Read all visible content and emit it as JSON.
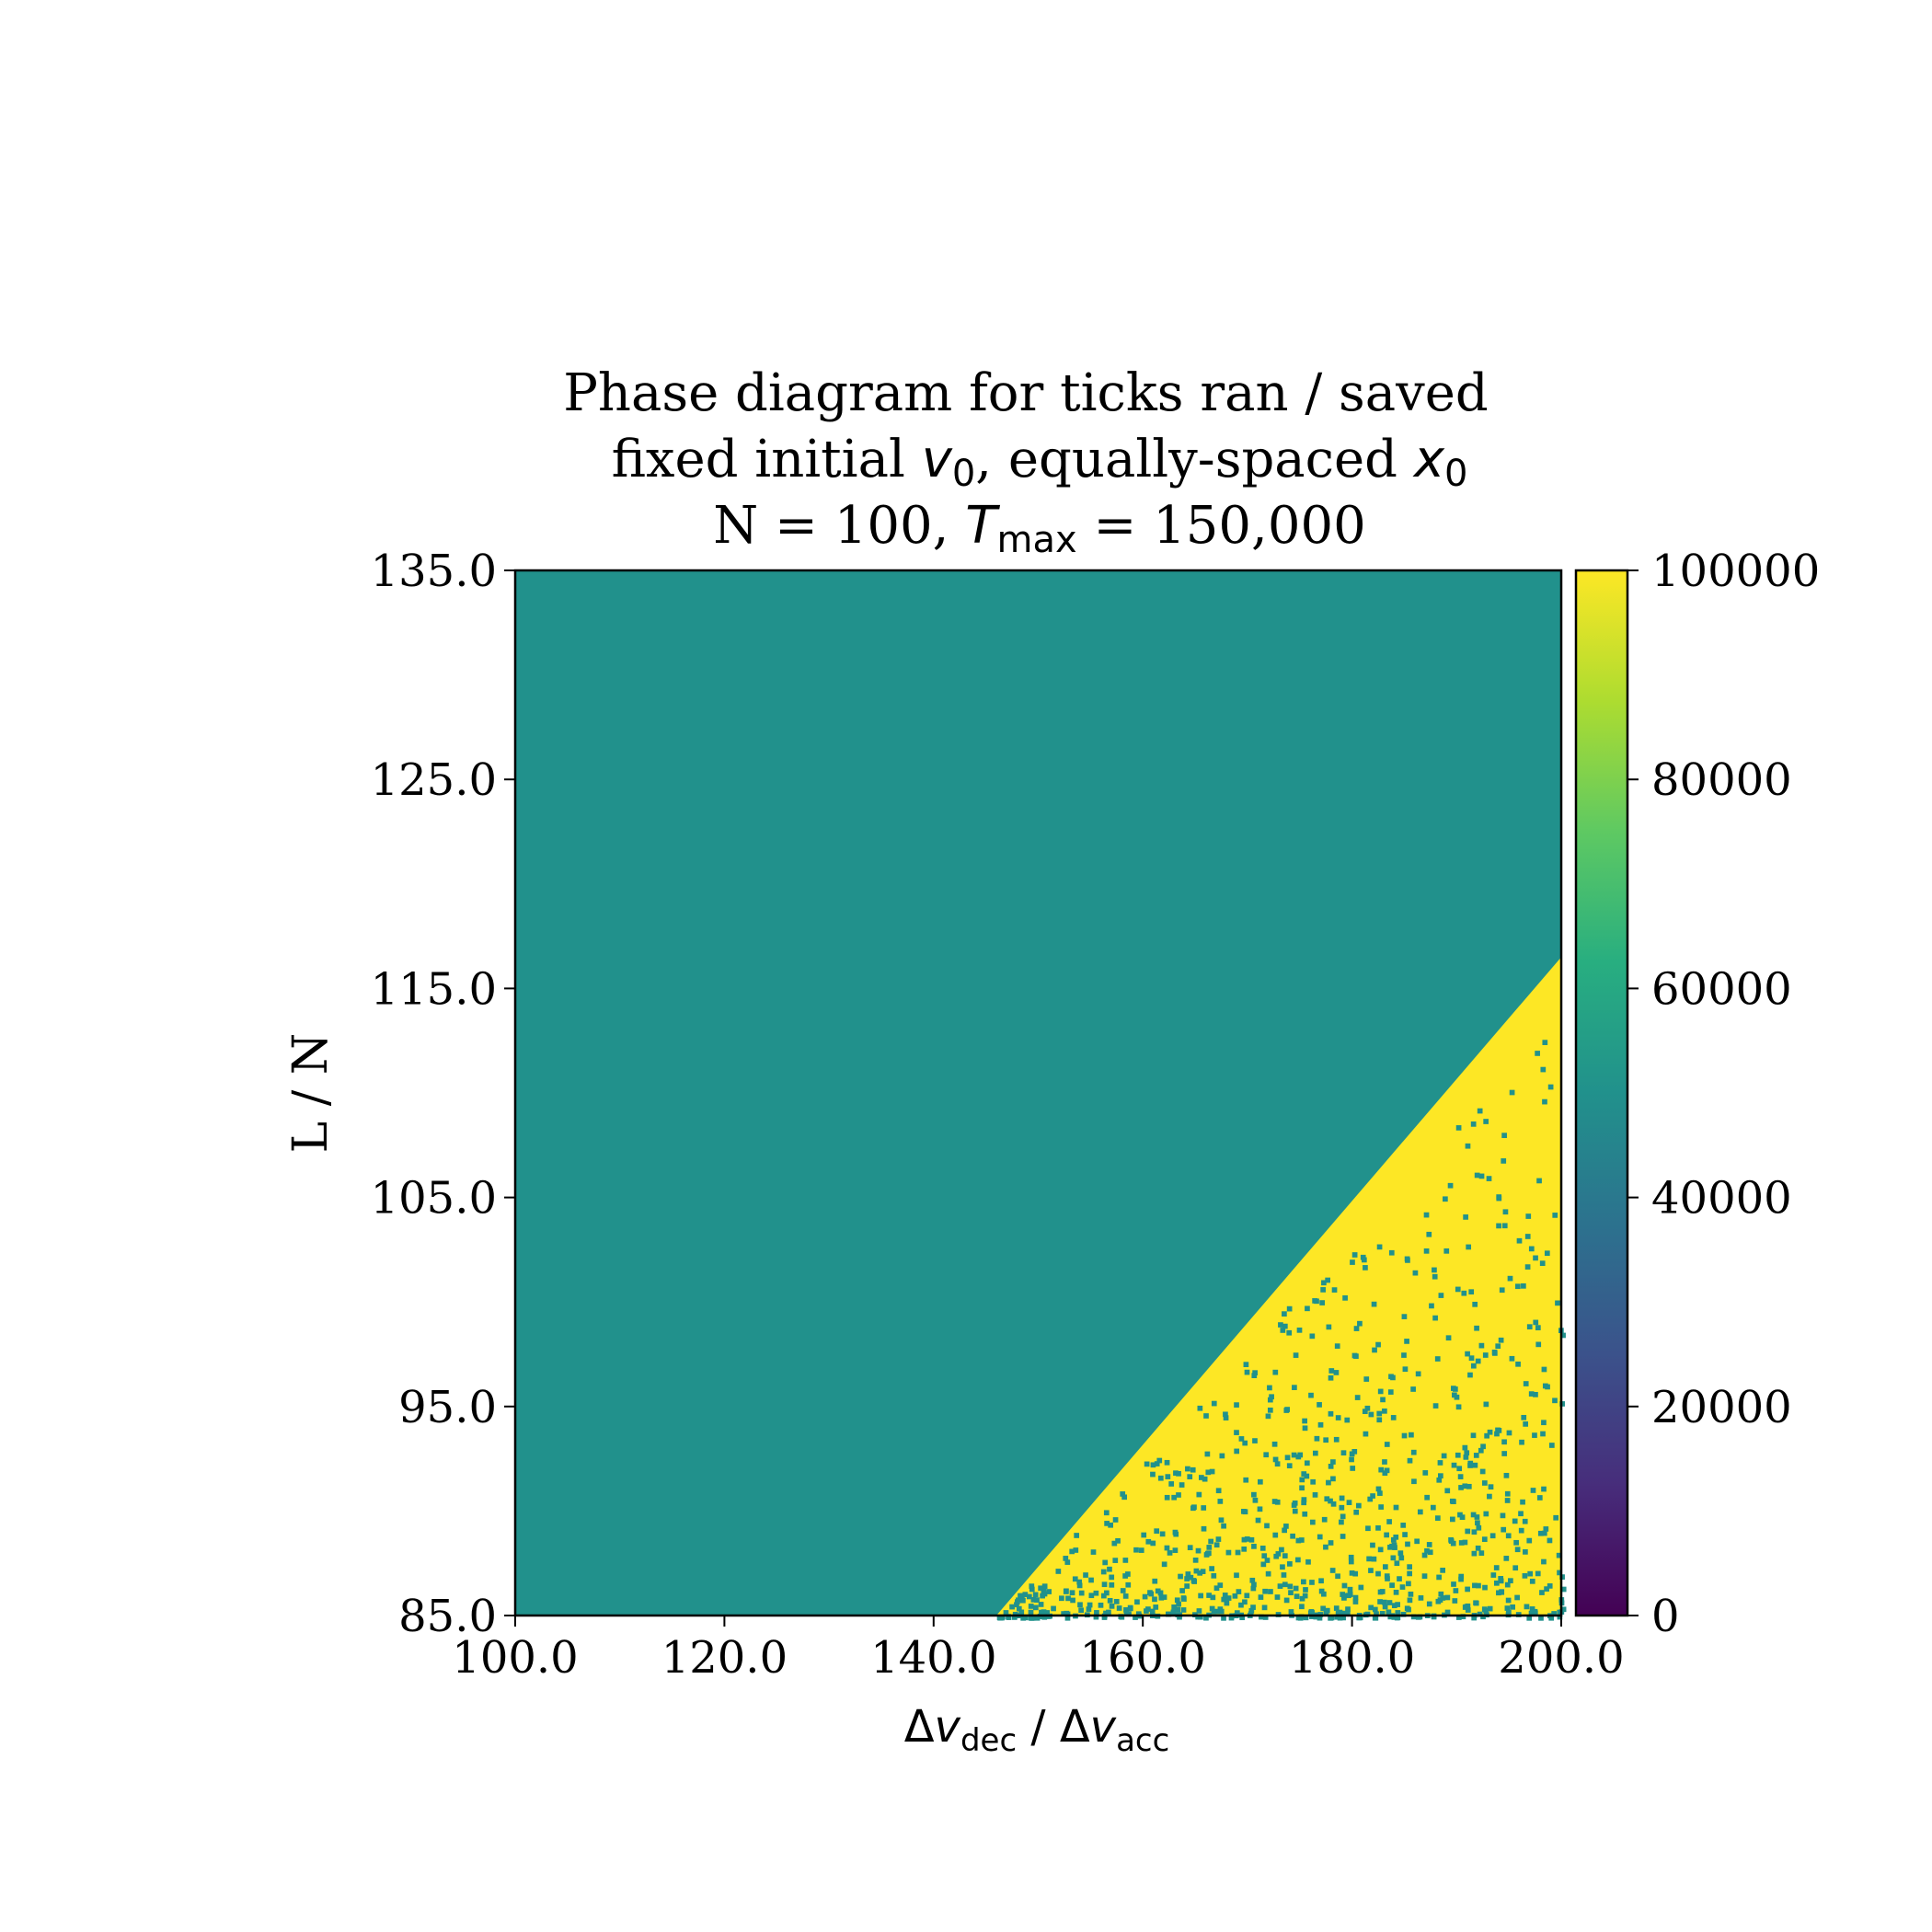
{
  "chart_data": {
    "type": "heatmap",
    "title": {
      "line1": "Phase diagram for ticks ran / saved",
      "line2": {
        "a": "fixed initial ",
        "v": "v",
        "vsub": "0",
        "b": ", equally-spaced ",
        "x": "x",
        "xsub": "0"
      },
      "line3": {
        "a": "N = 100, ",
        "t": "T",
        "tsub": "max",
        "b": " = 150,000"
      }
    },
    "xlabel": {
      "d1": "Δ",
      "v1": "v",
      "s1": "dec",
      "mid": " / ",
      "d2": "Δ",
      "v2": "v",
      "s2": "acc"
    },
    "ylabel": "L / N",
    "xlim": [
      100.0,
      200.0
    ],
    "ylim": [
      85.0,
      135.0
    ],
    "xticks": [
      "100.0",
      "120.0",
      "140.0",
      "160.0",
      "180.0",
      "200.0"
    ],
    "yticks": [
      "85.0",
      "95.0",
      "105.0",
      "115.0",
      "125.0",
      "135.0"
    ],
    "grid": false,
    "colormap": "viridis",
    "colorbar": {
      "range": [
        0,
        100000
      ],
      "ticks": [
        "0",
        "20000",
        "40000",
        "60000",
        "80000",
        "100000"
      ]
    },
    "regions": [
      {
        "name": "upper-left region",
        "value": 50000,
        "color": "#21918c"
      },
      {
        "name": "lower-right region",
        "value": 100000,
        "color": "#fde725",
        "speckle_value": 50000
      }
    ],
    "boundary": [
      {
        "x": 146,
        "y": 85.0
      },
      {
        "x": 200,
        "y": 116.5
      }
    ],
    "colors": {
      "teal": "#21918c",
      "yellow": "#fde725"
    }
  }
}
